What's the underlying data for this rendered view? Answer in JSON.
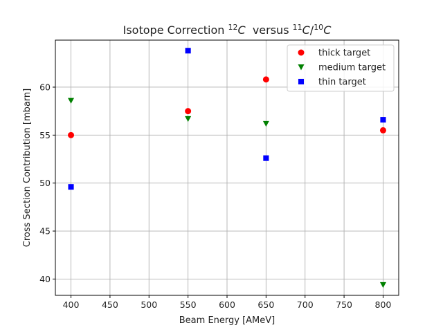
{
  "chart_data": {
    "type": "scatter",
    "title": {
      "prefix": "Isotope Correction ",
      "sup1": "12",
      "italic1": "C",
      "middle": "  versus ",
      "sup2": "11",
      "italic2": "C",
      "slash": "/",
      "sup3": "10",
      "italic3": "C"
    },
    "xlabel": "Beam Energy [AMeV]",
    "ylabel": "Cross Section Contribution [mbarn]",
    "xlim": [
      380,
      820
    ],
    "ylim": [
      38.3,
      64.9
    ],
    "xticks": [
      400,
      450,
      500,
      550,
      600,
      650,
      700,
      750,
      800
    ],
    "yticks": [
      40,
      45,
      50,
      55,
      60
    ],
    "grid": true,
    "legend_position": "top-right",
    "series": [
      {
        "name": "thick target",
        "marker": "circle",
        "color": "#ff0000",
        "points": [
          {
            "x": 400,
            "y": 55.0
          },
          {
            "x": 550,
            "y": 57.5
          },
          {
            "x": 650,
            "y": 60.8
          },
          {
            "x": 800,
            "y": 55.5
          }
        ]
      },
      {
        "name": "medium target",
        "marker": "triangle-down",
        "color": "#008000",
        "points": [
          {
            "x": 400,
            "y": 58.6
          },
          {
            "x": 550,
            "y": 56.7
          },
          {
            "x": 650,
            "y": 56.2
          },
          {
            "x": 800,
            "y": 39.4
          }
        ]
      },
      {
        "name": "thin target",
        "marker": "square",
        "color": "#0000ff",
        "points": [
          {
            "x": 400,
            "y": 49.6
          },
          {
            "x": 550,
            "y": 63.8
          },
          {
            "x": 650,
            "y": 52.6
          },
          {
            "x": 800,
            "y": 56.6
          }
        ]
      }
    ]
  }
}
